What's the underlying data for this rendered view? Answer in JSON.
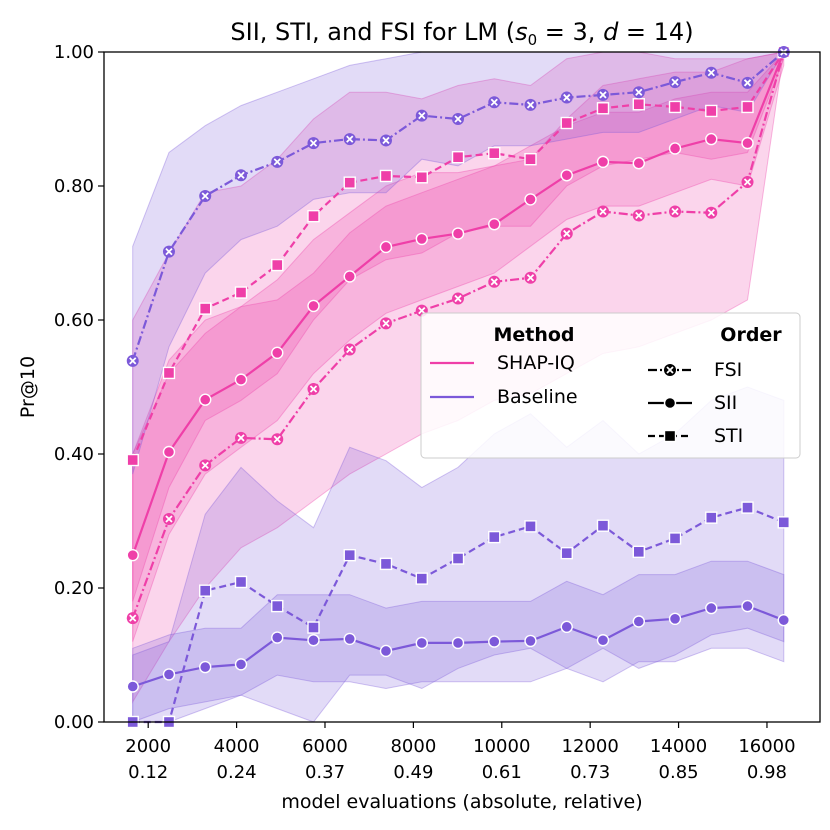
{
  "chart_data": {
    "type": "line",
    "title_parts": [
      "SII, STI, and FSI for LM (",
      "s",
      "0",
      " = 3, ",
      "d",
      " = 14)"
    ],
    "xlabel": "model evaluations (absolute, relative)",
    "ylabel": "Pr@10",
    "xlim": [
      1000,
      17200
    ],
    "ylim": [
      0,
      1
    ],
    "xticks": [
      {
        "value": 2000,
        "abs": "2000",
        "rel": "0.12"
      },
      {
        "value": 4000,
        "abs": "4000",
        "rel": "0.24"
      },
      {
        "value": 6000,
        "abs": "6000",
        "rel": "0.37"
      },
      {
        "value": 8000,
        "abs": "8000",
        "rel": "0.49"
      },
      {
        "value": 10000,
        "abs": "10000",
        "rel": "0.61"
      },
      {
        "value": 12000,
        "abs": "12000",
        "rel": "0.73"
      },
      {
        "value": 14000,
        "abs": "14000",
        "rel": "0.85"
      },
      {
        "value": 16000,
        "abs": "16000",
        "rel": "0.98"
      }
    ],
    "yticks": [
      {
        "value": 0.0,
        "label": "0.00"
      },
      {
        "value": 0.2,
        "label": "0.20"
      },
      {
        "value": 0.4,
        "label": "0.40"
      },
      {
        "value": 0.6,
        "label": "0.60"
      },
      {
        "value": 0.8,
        "label": "0.80"
      },
      {
        "value": 1.0,
        "label": "1.00"
      }
    ],
    "colors": {
      "shapiq": "#ef3fa8",
      "baseline": "#7c59d9"
    },
    "x": [
      1650,
      2470,
      3290,
      4100,
      4920,
      5740,
      6560,
      7380,
      8190,
      9010,
      9830,
      10650,
      11470,
      12290,
      13100,
      13920,
      14740,
      15560,
      16380
    ],
    "series": [
      {
        "name": "SHAP-IQ FSI",
        "method": "shapiq",
        "order": "FSI",
        "marker": "x",
        "dash": "dashdot",
        "values": [
          0.155,
          0.303,
          0.383,
          0.424,
          0.422,
          0.497,
          0.556,
          0.595,
          0.614,
          0.632,
          0.657,
          0.663,
          0.729,
          0.762,
          0.756,
          0.762,
          0.76,
          0.806,
          1.0
        ],
        "lower": [
          0.03,
          0.12,
          0.2,
          0.26,
          0.29,
          0.33,
          0.37,
          0.4,
          0.43,
          0.45,
          0.48,
          0.49,
          0.52,
          0.55,
          0.56,
          0.58,
          0.6,
          0.63,
          1.0
        ],
        "upper": [
          0.4,
          0.52,
          0.58,
          0.62,
          0.63,
          0.67,
          0.73,
          0.77,
          0.79,
          0.81,
          0.83,
          0.84,
          0.9,
          0.95,
          0.96,
          0.97,
          0.97,
          0.99,
          1.0
        ]
      },
      {
        "name": "SHAP-IQ SII",
        "method": "shapiq",
        "order": "SII",
        "marker": "circle",
        "dash": "solid",
        "values": [
          0.249,
          0.403,
          0.481,
          0.511,
          0.551,
          0.621,
          0.665,
          0.709,
          0.721,
          0.729,
          0.743,
          0.78,
          0.816,
          0.836,
          0.834,
          0.856,
          0.87,
          0.864,
          1.0
        ],
        "lower": [
          0.12,
          0.28,
          0.37,
          0.41,
          0.45,
          0.52,
          0.57,
          0.61,
          0.63,
          0.65,
          0.67,
          0.71,
          0.75,
          0.77,
          0.77,
          0.79,
          0.81,
          0.8,
          0.98
        ],
        "upper": [
          0.4,
          0.54,
          0.6,
          0.62,
          0.66,
          0.72,
          0.76,
          0.8,
          0.82,
          0.82,
          0.83,
          0.86,
          0.89,
          0.91,
          0.91,
          0.93,
          0.94,
          0.94,
          1.0
        ]
      },
      {
        "name": "SHAP-IQ STI",
        "method": "shapiq",
        "order": "STI",
        "marker": "square",
        "dash": "dashed",
        "values": [
          0.391,
          0.521,
          0.617,
          0.641,
          0.682,
          0.755,
          0.805,
          0.815,
          0.813,
          0.843,
          0.849,
          0.84,
          0.894,
          0.916,
          0.922,
          0.918,
          0.912,
          0.918,
          1.0
        ],
        "lower": [
          0.18,
          0.35,
          0.45,
          0.48,
          0.52,
          0.6,
          0.66,
          0.69,
          0.7,
          0.73,
          0.74,
          0.74,
          0.8,
          0.83,
          0.84,
          0.85,
          0.84,
          0.85,
          0.99
        ],
        "upper": [
          0.6,
          0.7,
          0.79,
          0.8,
          0.84,
          0.9,
          0.94,
          0.94,
          0.93,
          0.95,
          0.96,
          0.95,
          0.99,
          1.0,
          1.0,
          0.99,
          0.99,
          0.99,
          1.0
        ]
      },
      {
        "name": "Baseline FSI",
        "method": "baseline",
        "order": "FSI",
        "marker": "x",
        "dash": "dashdot",
        "values": [
          0.539,
          0.702,
          0.785,
          0.816,
          0.836,
          0.864,
          0.87,
          0.868,
          0.905,
          0.9,
          0.925,
          0.921,
          0.932,
          0.936,
          0.94,
          0.955,
          0.969,
          0.954,
          1.0
        ],
        "lower": [
          0.37,
          0.56,
          0.67,
          0.72,
          0.74,
          0.78,
          0.79,
          0.79,
          0.84,
          0.83,
          0.86,
          0.86,
          0.87,
          0.88,
          0.88,
          0.9,
          0.92,
          0.91,
          1.0
        ],
        "upper": [
          0.71,
          0.85,
          0.89,
          0.92,
          0.94,
          0.96,
          0.98,
          0.99,
          1.0,
          1.0,
          1.0,
          1.0,
          1.0,
          1.0,
          1.0,
          1.0,
          1.0,
          1.0,
          1.0
        ]
      },
      {
        "name": "Baseline SII",
        "method": "baseline",
        "order": "SII",
        "marker": "circle",
        "dash": "solid",
        "values": [
          0.053,
          0.071,
          0.082,
          0.086,
          0.126,
          0.122,
          0.124,
          0.106,
          0.118,
          0.118,
          0.12,
          0.121,
          0.142,
          0.122,
          0.15,
          0.154,
          0.17,
          0.173,
          0.152
        ],
        "lower": [
          0.0,
          0.02,
          0.03,
          0.04,
          0.07,
          0.06,
          0.06,
          0.05,
          0.06,
          0.06,
          0.06,
          0.06,
          0.08,
          0.06,
          0.09,
          0.09,
          0.11,
          0.11,
          0.09
        ],
        "upper": [
          0.11,
          0.13,
          0.14,
          0.14,
          0.19,
          0.19,
          0.19,
          0.17,
          0.18,
          0.18,
          0.18,
          0.18,
          0.21,
          0.19,
          0.22,
          0.22,
          0.24,
          0.24,
          0.22
        ]
      },
      {
        "name": "Baseline STI",
        "method": "baseline",
        "order": "STI",
        "marker": "square",
        "dash": "dashed",
        "values": [
          0.0,
          0.0,
          0.196,
          0.209,
          0.173,
          0.141,
          0.249,
          0.236,
          0.214,
          0.244,
          0.276,
          0.292,
          0.252,
          0.293,
          0.254,
          0.274,
          0.305,
          0.32,
          0.298
        ],
        "lower": [
          0.0,
          0.0,
          0.02,
          0.04,
          0.02,
          0.0,
          0.07,
          0.07,
          0.05,
          0.08,
          0.1,
          0.11,
          0.08,
          0.11,
          0.08,
          0.1,
          0.13,
          0.14,
          0.12
        ],
        "upper": [
          0.1,
          0.12,
          0.31,
          0.38,
          0.33,
          0.29,
          0.41,
          0.39,
          0.35,
          0.38,
          0.43,
          0.46,
          0.41,
          0.45,
          0.4,
          0.43,
          0.48,
          0.5,
          0.48
        ]
      }
    ],
    "legend": {
      "method_heading": "Method",
      "order_heading": "Order",
      "methods": [
        {
          "label": "SHAP-IQ",
          "key": "shapiq"
        },
        {
          "label": "Baseline",
          "key": "baseline"
        }
      ],
      "orders": [
        {
          "label": "FSI",
          "marker": "x",
          "dash": "dashdot"
        },
        {
          "label": "SII",
          "marker": "circle",
          "dash": "solid"
        },
        {
          "label": "STI",
          "marker": "square",
          "dash": "dashed"
        }
      ],
      "position": "center-right"
    }
  }
}
